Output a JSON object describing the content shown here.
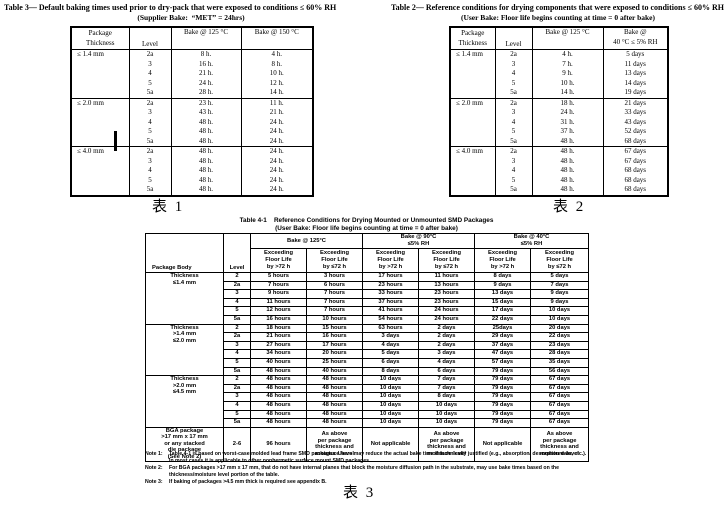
{
  "table3": {
    "title": "Table 3— Default baking times used prior to dry-pack that were exposed to conditions ≤ 60% RH",
    "subtitle": "(Supplier Bake:  “MET” = 24hrs)",
    "caption": "表 1",
    "headers": [
      "Package\nThickness",
      "Level",
      "Bake @ 125 °C",
      "Bake @ 150 °C"
    ],
    "groups": [
      {
        "thickness": "≤ 1.4 mm",
        "rows": [
          [
            "2a",
            "8 h.",
            "4 h."
          ],
          [
            "3",
            "16 h.",
            "8 h."
          ],
          [
            "4",
            "21 h.",
            "10 h."
          ],
          [
            "5",
            "24 h.",
            "12 h."
          ],
          [
            "5a",
            "28 h.",
            "14 h."
          ]
        ]
      },
      {
        "thickness": "≤ 2.0 mm",
        "rows": [
          [
            "2a",
            "23 h.",
            "11 h."
          ],
          [
            "3",
            "43 h.",
            "21 h."
          ],
          [
            "4",
            "48 h.",
            "24 h."
          ],
          [
            "5",
            "48 h.",
            "24 h."
          ],
          [
            "5a",
            "48 h.",
            "24 h."
          ]
        ]
      },
      {
        "thickness": "≤ 4.0 mm",
        "rows": [
          [
            "2a",
            "48 h.",
            "24 h."
          ],
          [
            "3",
            "48 h.",
            "24 h."
          ],
          [
            "4",
            "48 h.",
            "24 h."
          ],
          [
            "5",
            "48 h.",
            "24 h."
          ],
          [
            "5a",
            "48 h.",
            "24 h."
          ]
        ]
      }
    ]
  },
  "table2": {
    "title": "Table 2— Reference conditions for drying components that were exposed to conditions ≤ 60% RH",
    "subtitle": "(User Bake: Floor life begins counting at time = 0 after bake)",
    "caption": "表 2",
    "headers": [
      "Package\nThickness",
      "Level",
      "Bake @ 125 °C",
      "Bake @\n40 °C ≤ 5% RH"
    ],
    "groups": [
      {
        "thickness": "≤ 1.4 mm",
        "rows": [
          [
            "2a",
            "4 h.",
            "5 days"
          ],
          [
            "3",
            "7 h.",
            "11 days"
          ],
          [
            "4",
            "9 h.",
            "13 days"
          ],
          [
            "5",
            "10 h.",
            "14 days"
          ],
          [
            "5a",
            "14 h.",
            "19 days"
          ]
        ]
      },
      {
        "thickness": "≤ 2.0 mm",
        "rows": [
          [
            "2a",
            "18 h.",
            "21 days"
          ],
          [
            "3",
            "24 h.",
            "33 days"
          ],
          [
            "4",
            "31 h.",
            "43 days"
          ],
          [
            "5",
            "37 h.",
            "52 days"
          ],
          [
            "5a",
            "48 h.",
            "68 days"
          ]
        ]
      },
      {
        "thickness": "≤ 4.0 mm",
        "rows": [
          [
            "2a",
            "48 h.",
            "67 days"
          ],
          [
            "3",
            "48 h.",
            "67 days"
          ],
          [
            "4",
            "48 h.",
            "68 days"
          ],
          [
            "5",
            "48 h.",
            "68 days"
          ],
          [
            "5a",
            "48 h.",
            "68 days"
          ]
        ]
      }
    ]
  },
  "table41": {
    "title": "Table 4-1    Reference Conditions for Drying Mounted or Unmounted SMD Packages",
    "subtitle": "(User Bake: Floor life begins counting at time = 0 after bake)",
    "caption": "表 3",
    "header": {
      "package_body": "Package Body",
      "level": "Level",
      "bake_groups": [
        "Bake @ 125°C",
        "Bake @ 90°C\n≤5% RH",
        "Bake @ 40°C\n≤5% RH"
      ],
      "sub_gt72": "Exceeding\nFloor Life\nby >72 h",
      "sub_le72": "Exceeding\nFloor Life\nby ≤72 h"
    },
    "groups": [
      {
        "body": "Thickness\n≤1.4 mm",
        "rows": [
          {
            "level": "2",
            "cells": [
              "5 hours",
              "3 hours",
              "17 hours",
              "11 hours",
              "8 days",
              "5 days"
            ]
          },
          {
            "level": "2a",
            "cells": [
              "7 hours",
              "6 hours",
              "23 hours",
              "13 hours",
              "9 days",
              "7 days"
            ]
          },
          {
            "level": "3",
            "cells": [
              "9 hours",
              "7 hours",
              "33 hours",
              "23 hours",
              "13 days",
              "9 days"
            ]
          },
          {
            "level": "4",
            "cells": [
              "11 hours",
              "7 hours",
              "37 hours",
              "23 hours",
              "15 days",
              "9 days"
            ]
          },
          {
            "level": "5",
            "cells": [
              "12 hours",
              "7 hours",
              "41 hours",
              "24 hours",
              "17 days",
              "10 days"
            ]
          },
          {
            "level": "5a",
            "cells": [
              "16 hours",
              "10 hours",
              "54 hours",
              "24 hours",
              "22 days",
              "10 days"
            ]
          }
        ]
      },
      {
        "body": "Thickness\n>1.4 mm\n≤2.0 mm",
        "rows": [
          {
            "level": "2",
            "cells": [
              "18 hours",
              "15 hours",
              "63 hours",
              "2 days",
              "25days",
              "20 days"
            ]
          },
          {
            "level": "2a",
            "cells": [
              "21 hours",
              "16 hours",
              "3 days",
              "2 days",
              "29 days",
              "22 days"
            ]
          },
          {
            "level": "3",
            "cells": [
              "27 hours",
              "17 hours",
              "4 days",
              "2 days",
              "37 days",
              "23 days"
            ]
          },
          {
            "level": "4",
            "cells": [
              "34 hours",
              "20 hours",
              "5 days",
              "3 days",
              "47 days",
              "28 days"
            ]
          },
          {
            "level": "5",
            "cells": [
              "40 hours",
              "25 hours",
              "6 days",
              "4 days",
              "57 days",
              "35 days"
            ]
          },
          {
            "level": "5a",
            "cells": [
              "48 hours",
              "40 hours",
              "8 days",
              "6 days",
              "79 days",
              "56 days"
            ]
          }
        ]
      },
      {
        "body": "Thickness\n>2.0 mm\n≤4.5 mm",
        "rows": [
          {
            "level": "2",
            "cells": [
              "48 hours",
              "48 hours",
              "10 days",
              "7 days",
              "79 days",
              "67 days"
            ]
          },
          {
            "level": "2a",
            "cells": [
              "48 hours",
              "48 hours",
              "10 days",
              "7 days",
              "79 days",
              "67 days"
            ]
          },
          {
            "level": "3",
            "cells": [
              "48 hours",
              "48 hours",
              "10 days",
              "8 days",
              "79 days",
              "67 days"
            ]
          },
          {
            "level": "4",
            "cells": [
              "48 hours",
              "48 hours",
              "10 days",
              "10 days",
              "79 days",
              "67 days"
            ]
          },
          {
            "level": "5",
            "cells": [
              "48 hours",
              "48 hours",
              "10 days",
              "10 days",
              "79 days",
              "67 days"
            ]
          },
          {
            "level": "5a",
            "cells": [
              "48 hours",
              "48 hours",
              "10 days",
              "10 days",
              "79 days",
              "67 days"
            ]
          }
        ]
      },
      {
        "body": "BGA package\n>17 mm x 17 mm\nor any stacked\ndie package\n(See Note 2)",
        "rows": [
          {
            "level": "2-6",
            "cells": [
              "96 hours",
              "As above\nper package\nthickness and\nmoisture level",
              "Not applicable",
              "As above\nper package\nthickness and\nmoisture level",
              "Not applicable",
              "As above\nper package\nthickness and\nmoisture level"
            ]
          }
        ]
      }
    ],
    "notes": [
      {
        "label": "Note 1:",
        "text": "Table 4-1 is based on worst-case molded lead frame SMD packages. Users may reduce the actual bake time if technically justified (e.g., absorption/ desorption data, etc.). In most cases it is applicable to other nonhermetic surface mount SMD packages."
      },
      {
        "label": "Note 2:",
        "text": "For BGA packages >17 mm x 17 mm, that do not have internal planes that block the moisture diffusion path in the substrate, may use bake times based on the thickness/moisture level portion of the table."
      },
      {
        "label": "Note 3:",
        "text": "If baking of packages >4.5 mm thick is required see appendix B."
      }
    ]
  }
}
